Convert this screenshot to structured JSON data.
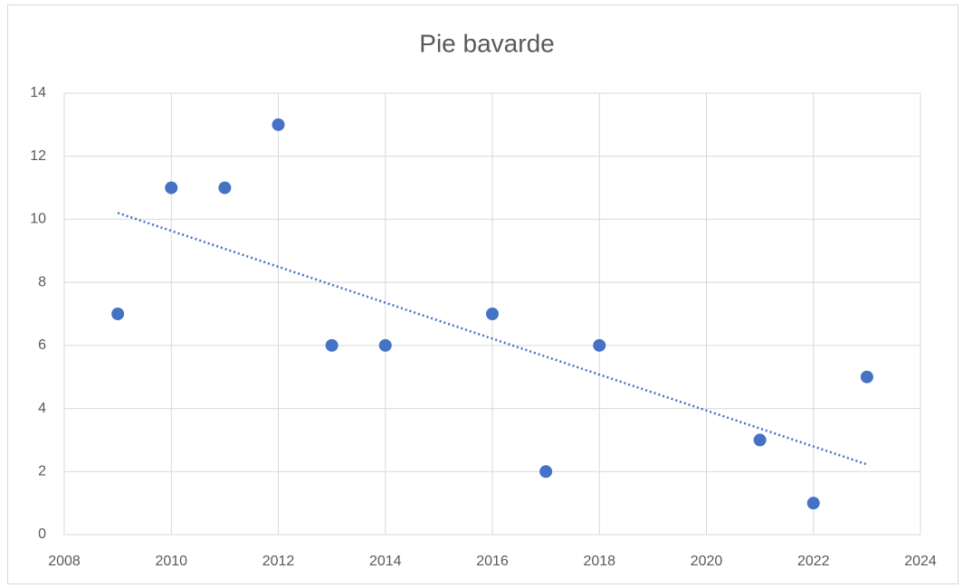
{
  "chart_data": {
    "type": "scatter",
    "title": "Pie bavarde",
    "x": [
      2009,
      2010,
      2011,
      2012,
      2013,
      2014,
      2016,
      2017,
      2018,
      2021,
      2022,
      2023
    ],
    "series": [
      {
        "color": "#4472c4",
        "values": [
          7,
          11,
          11,
          13,
          6,
          6,
          7,
          2,
          6,
          3,
          1,
          5
        ]
      }
    ],
    "trendline": "linear",
    "xlim": [
      2008,
      2024
    ],
    "xticks": [
      2008,
      2010,
      2012,
      2014,
      2016,
      2018,
      2020,
      2022,
      2024
    ],
    "ylim": [
      0,
      14
    ],
    "yticks": [
      0,
      2,
      4,
      6,
      8,
      10,
      12,
      14
    ],
    "grid": true
  }
}
